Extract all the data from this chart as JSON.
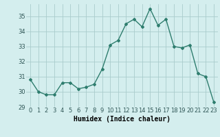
{
  "x": [
    0,
    1,
    2,
    3,
    4,
    5,
    6,
    7,
    8,
    9,
    10,
    11,
    12,
    13,
    14,
    15,
    16,
    17,
    18,
    19,
    20,
    21,
    22,
    23
  ],
  "y": [
    30.8,
    30.0,
    29.8,
    29.8,
    30.6,
    30.6,
    30.2,
    30.3,
    30.5,
    31.5,
    33.1,
    33.4,
    34.5,
    34.8,
    34.3,
    35.5,
    34.4,
    34.8,
    33.0,
    32.9,
    33.1,
    31.2,
    31.0,
    29.3
  ],
  "line_color": "#2e7d6e",
  "marker": "D",
  "marker_size": 2,
  "bg_color": "#d4eeee",
  "grid_color": "#aacccc",
  "xlabel": "Humidex (Indice chaleur)",
  "xlim": [
    -0.5,
    23.5
  ],
  "ylim": [
    29,
    35.8
  ],
  "yticks": [
    29,
    30,
    31,
    32,
    33,
    34,
    35
  ],
  "xticks": [
    0,
    1,
    2,
    3,
    4,
    5,
    6,
    7,
    8,
    9,
    10,
    11,
    12,
    13,
    14,
    15,
    16,
    17,
    18,
    19,
    20,
    21,
    22,
    23
  ],
  "tick_fontsize": 6,
  "xlabel_fontsize": 7,
  "linewidth": 1.0
}
